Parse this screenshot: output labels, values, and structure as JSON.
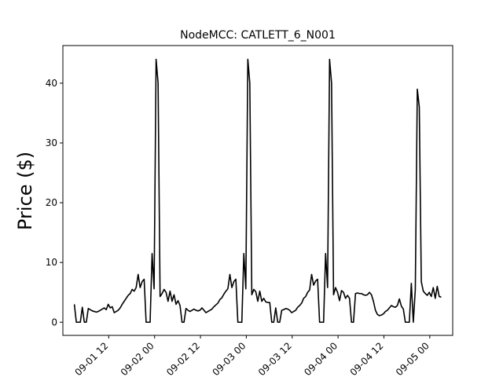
{
  "chart_data": {
    "type": "line",
    "title": "NodeMCC: CATLETT_6_N001",
    "xlabel": "",
    "ylabel": "Price ($)",
    "x_start": "2022-09-01 03:00",
    "x_end": "2022-09-05 03:00",
    "xlim": [
      "2022-09-01 00:00",
      "2022-09-05 06:00"
    ],
    "ylim": [
      -2.2,
      46.3
    ],
    "yticks": [
      0,
      10,
      20,
      30,
      40
    ],
    "ytick_labels": [
      "0",
      "10",
      "20",
      "30",
      "40"
    ],
    "xticks": [
      "2022-09-01 12:00",
      "2022-09-02 00:00",
      "2022-09-02 12:00",
      "2022-09-03 00:00",
      "2022-09-03 12:00",
      "2022-09-04 00:00",
      "2022-09-04 12:00",
      "2022-09-05 00:00"
    ],
    "xtick_labels": [
      "09-01 12",
      "09-02 00",
      "09-02 12",
      "09-03 00",
      "09-03 12",
      "09-04 00",
      "09-04 12",
      "09-05 00"
    ],
    "grid": false,
    "series": [
      {
        "color": "#000000",
        "values": [
          3.0,
          0.0,
          0.0,
          0.0,
          2.5,
          0.0,
          0.0,
          2.3,
          2.1,
          1.9,
          1.8,
          1.7,
          1.8,
          2.0,
          2.2,
          2.4,
          2.1,
          3.0,
          2.4,
          2.6,
          1.6,
          1.8,
          2.0,
          2.4,
          3.0,
          3.5,
          4.0,
          4.5,
          4.8,
          5.5,
          5.2,
          5.8,
          8.0,
          5.8,
          6.8,
          7.2,
          0.0,
          0.0,
          0.0,
          11.5,
          5.6,
          44.0,
          40.0,
          4.3,
          4.8,
          5.5,
          5.0,
          3.5,
          5.2,
          3.5,
          4.6,
          3.0,
          3.6,
          2.8,
          0.0,
          0.0,
          2.3,
          2.0,
          1.8,
          2.0,
          2.2,
          2.0,
          1.9,
          2.0,
          2.4,
          2.0,
          1.6,
          1.8,
          2.0,
          2.2,
          2.6,
          2.9,
          3.2,
          3.8,
          4.1,
          4.7,
          5.2,
          5.6,
          8.0,
          5.8,
          6.8,
          7.2,
          0.0,
          0.0,
          0.0,
          11.5,
          5.6,
          44.0,
          40.0,
          4.6,
          5.5,
          5.1,
          3.5,
          5.2,
          3.5,
          4.0,
          3.4,
          3.3,
          3.3,
          0.0,
          0.0,
          2.4,
          0.0,
          0.0,
          2.0,
          2.1,
          2.3,
          2.2,
          2.0,
          1.6,
          1.8,
          2.0,
          2.5,
          2.8,
          3.2,
          4.0,
          4.3,
          5.0,
          5.4,
          8.0,
          6.2,
          6.9,
          7.2,
          0.0,
          0.0,
          0.0,
          11.5,
          5.8,
          44.0,
          40.0,
          4.6,
          5.8,
          5.0,
          3.6,
          5.3,
          5.0,
          4.0,
          4.5,
          4.0,
          0.0,
          0.0,
          4.8,
          4.9,
          4.8,
          4.8,
          4.6,
          4.5,
          4.6,
          5.0,
          4.6,
          3.5,
          2.0,
          1.3,
          1.1,
          1.2,
          1.4,
          1.8,
          2.0,
          2.4,
          2.8,
          2.6,
          2.5,
          2.8,
          3.9,
          2.7,
          2.2,
          0.0,
          0.0,
          0.0,
          6.5,
          0.0,
          5.5,
          39.0,
          36.0,
          6.8,
          5.2,
          4.8,
          4.5,
          5.0,
          4.3,
          5.8,
          4.0,
          6.0,
          4.3,
          4.2
        ]
      }
    ]
  }
}
